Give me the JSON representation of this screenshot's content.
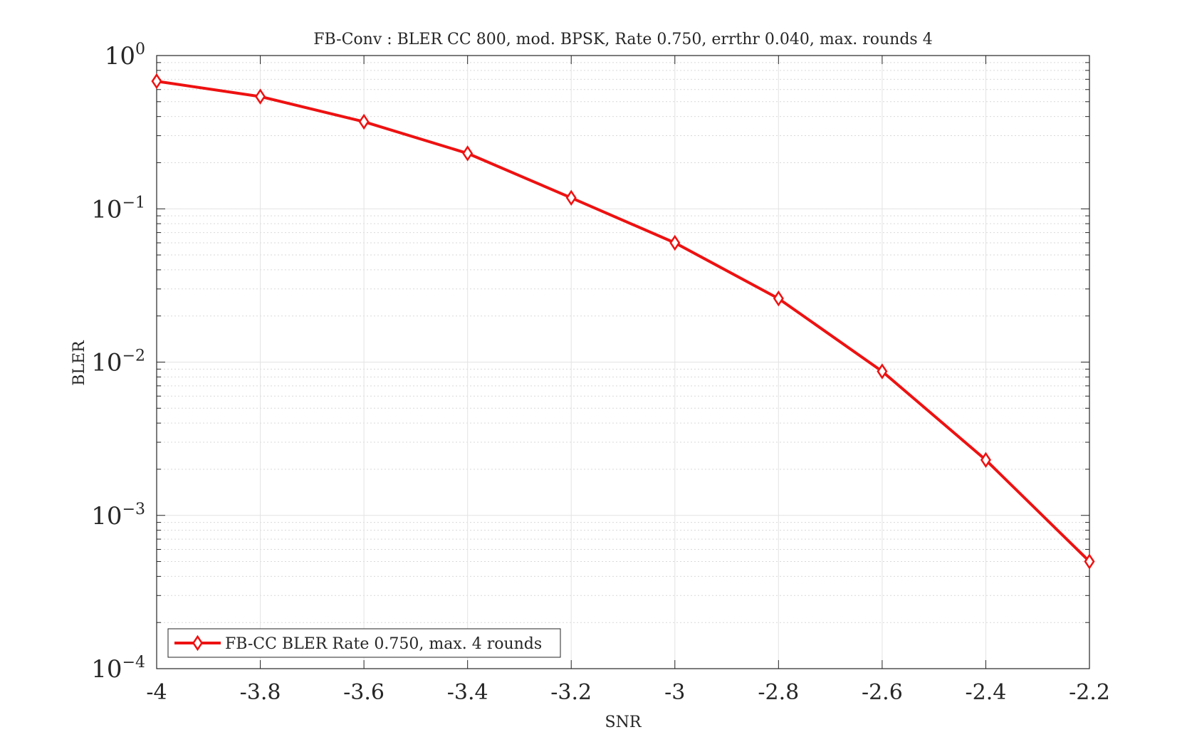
{
  "chart_data": {
    "type": "line",
    "title": "FB-Conv : BLER CC 800, mod. BPSK, Rate 0.750, errthr 0.040, max. rounds 4",
    "xlabel": "SNR",
    "ylabel": "BLER",
    "xlim": [
      -4,
      -2.2
    ],
    "ylim": [
      0.0001,
      1
    ],
    "yscale": "log",
    "grid": true,
    "minor_grid": true,
    "legend_position": "bottom-left",
    "x_ticks": [
      "-4",
      "-3.8",
      "-3.6",
      "-3.4",
      "-3.2",
      "-3",
      "-2.8",
      "-2.6",
      "-2.4",
      "-2.2"
    ],
    "y_ticks": [
      {
        "base": "10",
        "exp": "0"
      },
      {
        "base": "10",
        "exp": "−1"
      },
      {
        "base": "10",
        "exp": "−2"
      },
      {
        "base": "10",
        "exp": "−3"
      },
      {
        "base": "10",
        "exp": "−4"
      }
    ],
    "series": [
      {
        "name": "FB-CC BLER Rate 0.750, max. 4 rounds",
        "color": "#ee1111",
        "marker": "diamond",
        "x": [
          -4,
          -3.8,
          -3.6,
          -3.4,
          -3.2,
          -3,
          -2.8,
          -2.6,
          -2.4,
          -2.2
        ],
        "y": [
          0.68,
          0.54,
          0.37,
          0.23,
          0.118,
          0.06,
          0.026,
          0.0087,
          0.0023,
          0.0005
        ]
      }
    ]
  }
}
